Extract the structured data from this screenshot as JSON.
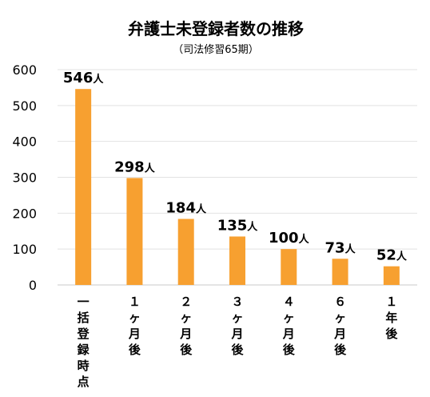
{
  "chart_data": {
    "type": "bar",
    "title": "弁護士未登録者数の推移",
    "subtitle": "（司法修習65期）",
    "xlabel": "",
    "ylabel": "",
    "ylim": [
      0,
      600
    ],
    "yticks": [
      "0",
      "100",
      "200",
      "300",
      "400",
      "500",
      "600"
    ],
    "grid": true,
    "bar_color": "#f7a030",
    "value_unit": "人",
    "categories": [
      "一括登録時点",
      "１ヶ月後",
      "２ヶ月後",
      "３ヶ月後",
      "４ヶ月後",
      "６ヶ月後",
      "１年後"
    ],
    "values": [
      546,
      298,
      184,
      135,
      100,
      73,
      52
    ]
  }
}
